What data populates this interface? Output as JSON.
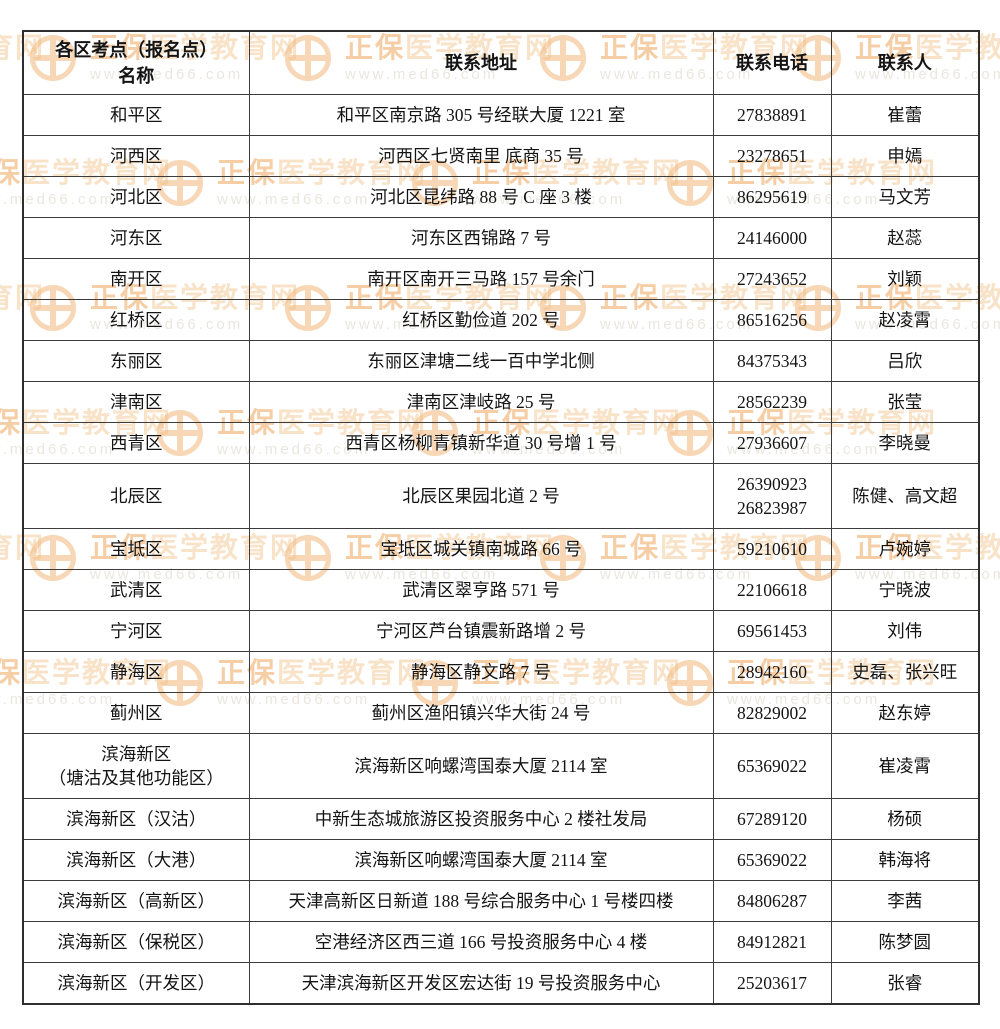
{
  "watermark": {
    "brand_strong": "正保",
    "brand_rest": "医学教育网",
    "url": "www.med66.com"
  },
  "colors": {
    "border": "#3c3c3c",
    "text": "#141414",
    "watermark_orange": "#efae6c",
    "watermark_tan": "#f4d2a6",
    "watermark_url_gray": "#ddd6cb"
  },
  "table": {
    "headers": [
      "各区考点（报名点）\n名称",
      "联系地址",
      "联系电话",
      "联系人"
    ],
    "rows": [
      {
        "name": "和平区",
        "address": "和平区南京路 305 号经联大厦 1221 室",
        "phone": "27838891",
        "contact": "崔蕾"
      },
      {
        "name": "河西区",
        "address": "河西区七贤南里 底商 35 号",
        "phone": "23278651",
        "contact": "申嫣"
      },
      {
        "name": "河北区",
        "address": "河北区昆纬路 88 号 C 座 3 楼",
        "phone": "86295619",
        "contact": "马文芳"
      },
      {
        "name": "河东区",
        "address": "河东区西锦路 7 号",
        "phone": "24146000",
        "contact": "赵蕊"
      },
      {
        "name": "南开区",
        "address": "南开区南开三马路 157 号余门",
        "phone": "27243652",
        "contact": "刘颖"
      },
      {
        "name": "红桥区",
        "address": "红桥区勤俭道 202 号",
        "phone": "86516256",
        "contact": "赵凌霄"
      },
      {
        "name": "东丽区",
        "address": "东丽区津塘二线一百中学北侧",
        "phone": "84375343",
        "contact": "吕欣"
      },
      {
        "name": "津南区",
        "address": "津南区津岐路 25 号",
        "phone": "28562239",
        "contact": "张莹"
      },
      {
        "name": "西青区",
        "address": "西青区杨柳青镇新华道 30 号增 1 号",
        "phone": "27936607",
        "contact": "李晓曼"
      },
      {
        "name": "北辰区",
        "address": "北辰区果园北道 2 号",
        "phone": "26390923\n26823987",
        "contact": "陈健、高文超"
      },
      {
        "name": "宝坻区",
        "address": "宝坻区城关镇南城路 66 号",
        "phone": "59210610",
        "contact": "卢婉婷"
      },
      {
        "name": "武清区",
        "address": "武清区翠亨路 571 号",
        "phone": "22106618",
        "contact": "宁晓波"
      },
      {
        "name": "宁河区",
        "address": "宁河区芦台镇震新路增 2 号",
        "phone": "69561453",
        "contact": "刘伟"
      },
      {
        "name": "静海区",
        "address": "静海区静文路 7 号",
        "phone": "28942160",
        "contact": "史磊、张兴旺"
      },
      {
        "name": "蓟州区",
        "address": "蓟州区渔阳镇兴华大街 24 号",
        "phone": "82829002",
        "contact": "赵东婷"
      },
      {
        "name": "滨海新区\n（塘沽及其他功能区）",
        "address": "滨海新区响螺湾国泰大厦 2114 室",
        "phone": "65369022",
        "contact": "崔凌霄"
      },
      {
        "name": "滨海新区（汉沽）",
        "address": "中新生态城旅游区投资服务中心 2 楼社发局",
        "phone": "67289120",
        "contact": "杨硕"
      },
      {
        "name": "滨海新区（大港）",
        "address": "滨海新区响螺湾国泰大厦 2114 室",
        "phone": "65369022",
        "contact": "韩海将"
      },
      {
        "name": "滨海新区（高新区）",
        "address": "天津高新区日新道 188 号综合服务中心 1 号楼四楼",
        "phone": "84806287",
        "contact": "李茜"
      },
      {
        "name": "滨海新区（保税区）",
        "address": "空港经济区西三道 166 号投资服务中心 4 楼",
        "phone": "84912821",
        "contact": "陈梦圆"
      },
      {
        "name": "滨海新区（开发区）",
        "address": "天津滨海新区开发区宏达街 19 号投资服务中心",
        "phone": "25203617",
        "contact": "张睿"
      }
    ]
  }
}
